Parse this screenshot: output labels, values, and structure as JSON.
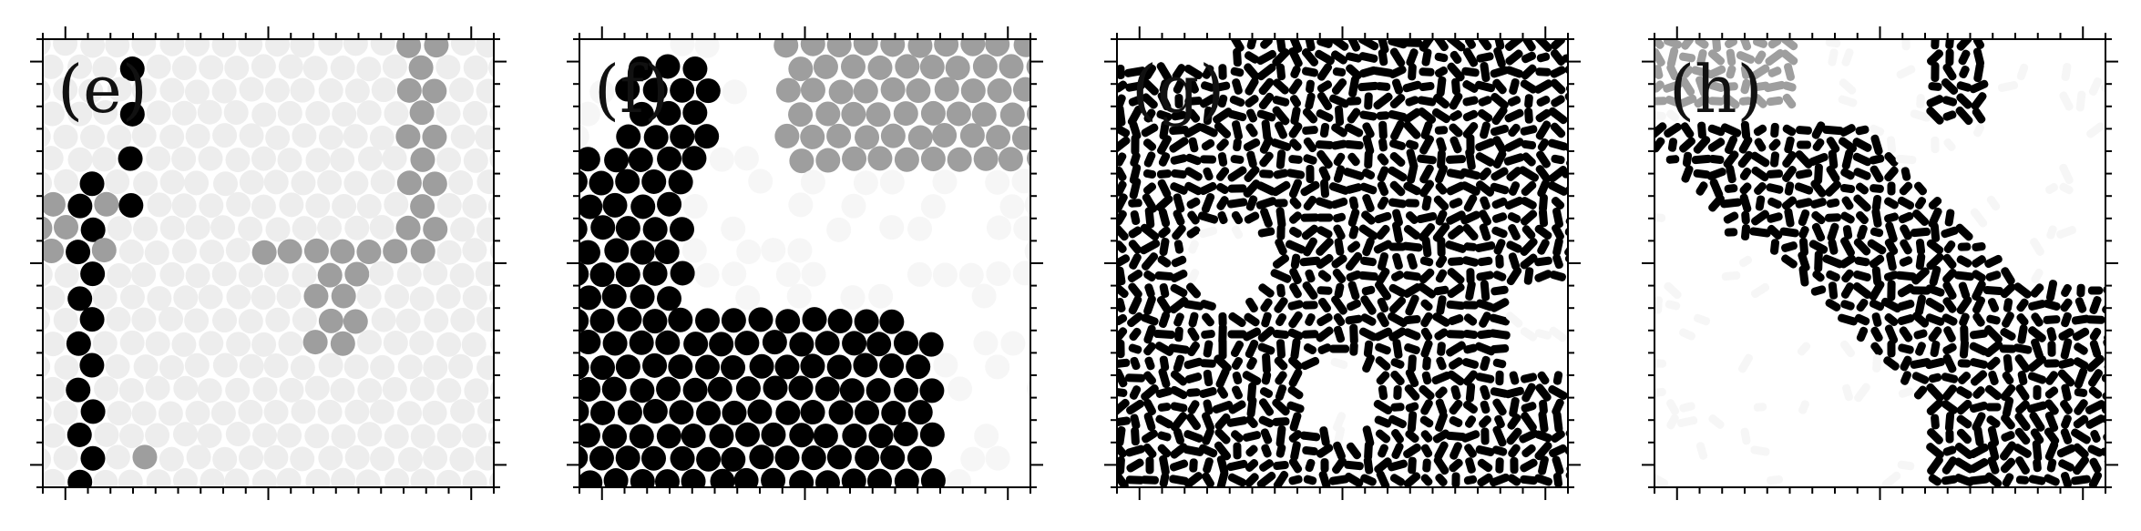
{
  "panels": [
    {
      "label": "(e)",
      "style": "particles",
      "seed": 11
    },
    {
      "label": "(f)",
      "style": "particles",
      "seed": 23
    },
    {
      "label": "(g)",
      "style": "worms",
      "seed": 37
    },
    {
      "label": "(h)",
      "style": "worms",
      "seed": 53
    }
  ],
  "colors": {
    "frame": "#000000",
    "background": "#ffffff",
    "dark_particle": "#000000",
    "gray_particle": "#9e9e9e",
    "light_particle": "#ededed",
    "faint_particle": "#f6f6f6"
  }
}
